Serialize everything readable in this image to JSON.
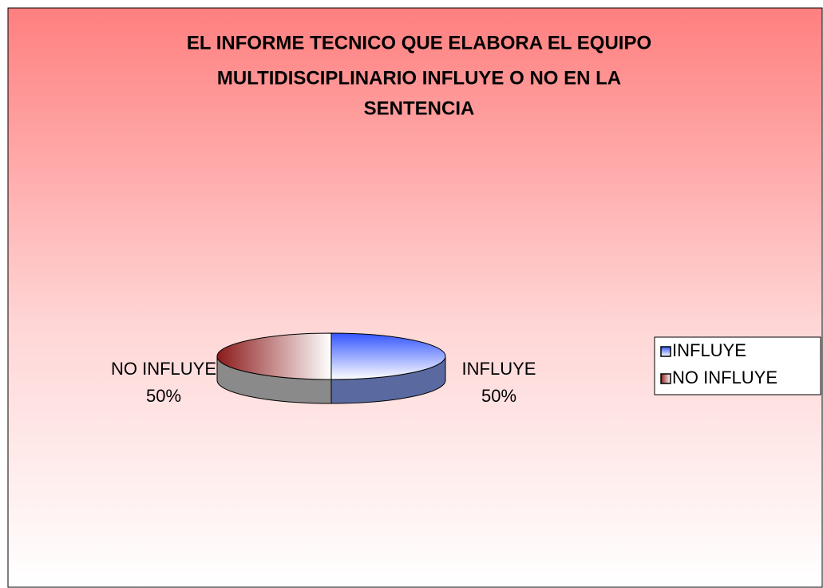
{
  "chart_data": {
    "type": "pie",
    "title": [
      "EL INFORME TECNICO QUE ELABORA EL EQUIPO",
      "MULTIDISCIPLINARIO INFLUYE O NO EN LA",
      "SENTENCIA"
    ],
    "categories": [
      "INFLUYE",
      "NO INFLUYE"
    ],
    "values": [
      50,
      50
    ],
    "value_labels": [
      "50%",
      "50%"
    ],
    "colors": [
      "#3355ff",
      "#8b1a1a"
    ],
    "legend": "right"
  }
}
